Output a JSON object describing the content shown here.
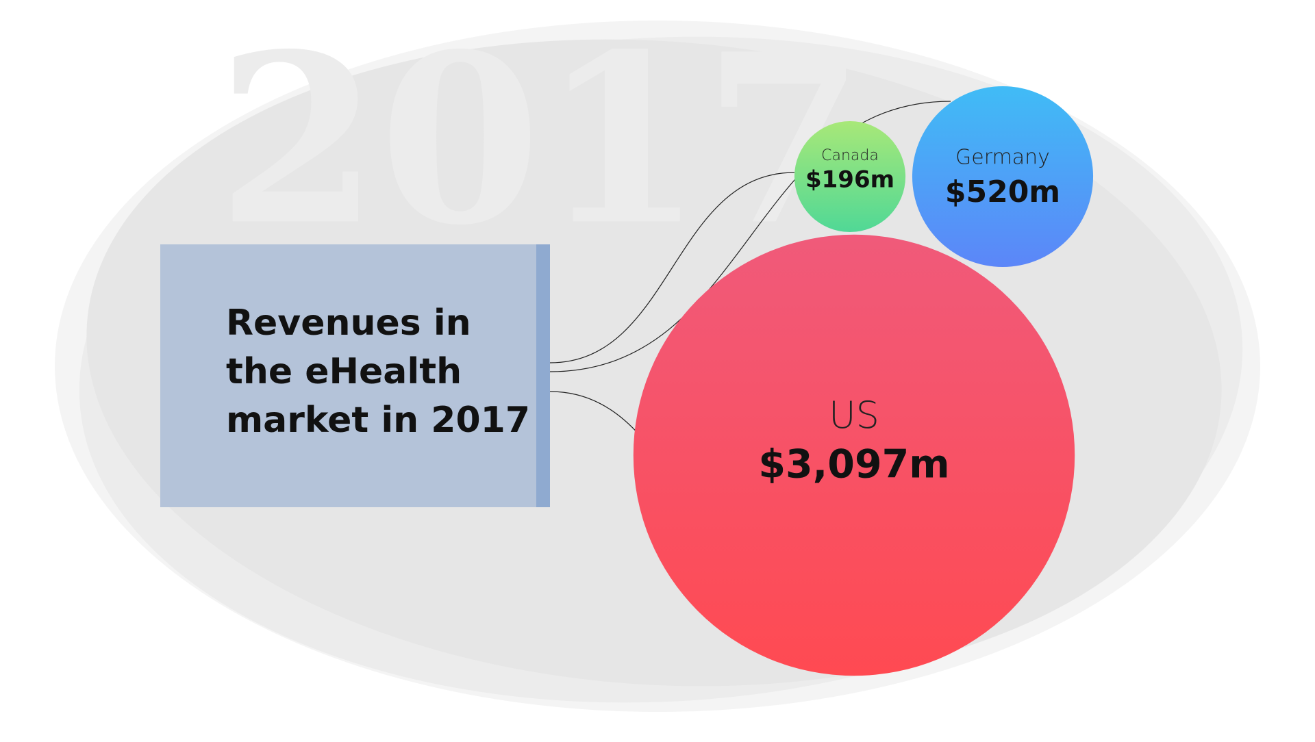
{
  "chart_data": {
    "type": "bubble",
    "title": "Revenues in the eHealth market in 2017",
    "watermark": "2017",
    "categories": [
      "Canada",
      "Germany",
      "US"
    ],
    "values": [
      196,
      520,
      3097
    ],
    "value_labels": [
      "$196m",
      "$520m",
      "$3,097m"
    ],
    "colors": [
      [
        "#a8e878",
        "#50d896"
      ],
      [
        "#40bcf6",
        "#5c86f8"
      ],
      [
        "#f05a7a",
        "#ff4a52"
      ]
    ]
  }
}
